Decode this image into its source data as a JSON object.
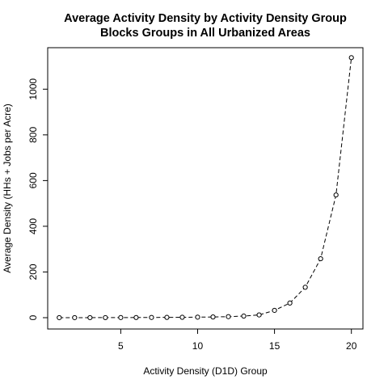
{
  "chart_data": {
    "type": "line",
    "title": "Average Activity Density by Activity Density Group",
    "subtitle": "Blocks Groups in All Urbanized Areas",
    "xlabel": "Activity Density (D1D) Group",
    "ylabel": "Average Density (HHs + Jobs per Acre)",
    "x": [
      1,
      2,
      3,
      4,
      5,
      6,
      7,
      8,
      9,
      10,
      11,
      12,
      13,
      14,
      15,
      16,
      17,
      18,
      19,
      20
    ],
    "values": [
      0.02,
      0.1,
      0.2,
      0.3,
      0.5,
      0.7,
      1.0,
      1.3,
      1.7,
      2.3,
      3.1,
      4.5,
      7,
      12,
      32,
      64,
      133,
      258,
      537,
      1138
    ],
    "xlim": [
      1,
      20
    ],
    "ylim": [
      0,
      1138
    ],
    "xticks": [
      "5",
      "10",
      "15",
      "20"
    ],
    "yticks": [
      "0",
      "200",
      "400",
      "600",
      "800",
      "1000"
    ],
    "line_style": "dashed",
    "marker": "open-circle",
    "grid": false,
    "colors": {
      "line": "#000000",
      "background": "#ffffff"
    }
  }
}
